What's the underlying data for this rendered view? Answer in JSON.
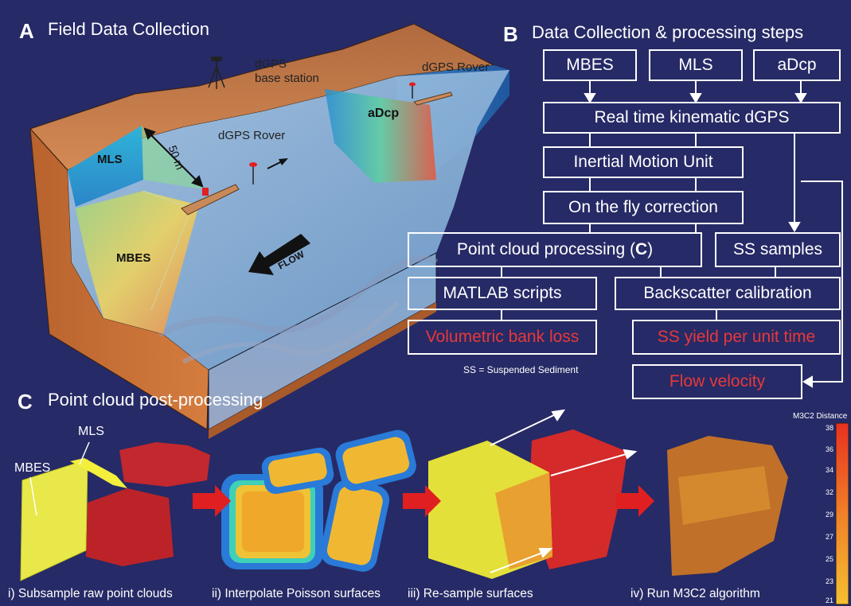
{
  "panel_a": {
    "letter": "A",
    "title": "Field Data Collection",
    "labels": {
      "base_station_line1": "dGPS",
      "base_station_line2": "base station",
      "rover_main": "dGPS Rover",
      "rover_far": "dGPS Rover",
      "mls": "MLS",
      "mbes": "MBES",
      "adcp": "aDcp",
      "distance": "50 m",
      "flow": "FLOW"
    }
  },
  "panel_b": {
    "letter": "B",
    "title": "Data Collection & processing steps",
    "boxes": {
      "mbes": "MBES",
      "mls": "MLS",
      "adcp": "aDcp",
      "rtk": "Real time kinematic dGPS",
      "imu": "Inertial Motion Unit",
      "otf": "On the fly correction",
      "pcp_prefix": "Point cloud processing (",
      "pcp_ref": "C",
      "pcp_suffix": ")",
      "ss_samples": "SS samples",
      "matlab": "MATLAB scripts",
      "backscatter": "Backscatter calibration",
      "vol_loss": "Volumetric bank loss",
      "ss_yield": "SS yield per unit time",
      "flow_velocity": "Flow velocity"
    },
    "footnote": "SS = Suspended Sediment"
  },
  "panel_c": {
    "letter": "C",
    "title": "Point cloud post-processing",
    "cloud_labels": {
      "mls": "MLS",
      "mbes": "MBES"
    },
    "steps": [
      "i) Subsample raw point clouds",
      "ii) Interpolate Poisson surfaces",
      "iii) Re-sample surfaces",
      "iv) Run M3C2 algorithm"
    ],
    "scale": {
      "title": "M3C2 Distance",
      "ticks": [
        "38",
        "36",
        "34",
        "32",
        "29",
        "27",
        "25",
        "23",
        "21"
      ]
    }
  },
  "colors": {
    "background": "#262a66",
    "red_text": "#e8383a",
    "arrow_red": "#e02020",
    "earth": "#c8733a",
    "water": "#7fa9d2"
  }
}
